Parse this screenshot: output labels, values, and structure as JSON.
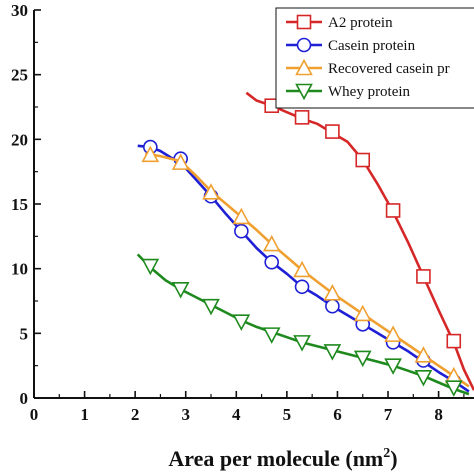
{
  "chart_data": {
    "type": "line",
    "xlabel": "Area per molecule (nm",
    "xlabel_sup": "2",
    "xlabel_close": ")",
    "ylabel": "",
    "xlim": [
      0,
      8.7
    ],
    "ylim": [
      0,
      30
    ],
    "xticks": [
      "0",
      "1",
      "2",
      "3",
      "4",
      "5",
      "6",
      "7",
      "8"
    ],
    "yticks": [
      "0",
      "5",
      "10",
      "15",
      "20",
      "25",
      "30"
    ],
    "legend_position": "top-right",
    "series": [
      {
        "name": "A2 protein",
        "color": "#d62728",
        "marker": "square",
        "x": [
          4.2,
          4.4,
          4.7,
          5.0,
          5.3,
          5.6,
          5.9,
          6.2,
          6.5,
          6.8,
          7.1,
          7.4,
          7.7,
          8.0,
          8.3,
          8.5,
          8.7
        ],
        "y": [
          23.6,
          23.0,
          22.6,
          22.1,
          21.6,
          21.2,
          20.5,
          19.8,
          18.4,
          16.5,
          14.4,
          12.0,
          9.4,
          6.8,
          4.3,
          2.2,
          0.6
        ],
        "marker_x": [
          4.7,
          5.3,
          5.9,
          6.5,
          7.1,
          7.7,
          8.3
        ],
        "marker_y": [
          22.6,
          21.7,
          20.6,
          18.4,
          14.5,
          9.4,
          4.4
        ]
      },
      {
        "name": "Casein protein",
        "color": "#1f1fd6",
        "marker": "circle",
        "x": [
          2.05,
          2.3,
          2.5,
          2.7,
          2.9,
          3.2,
          3.5,
          3.8,
          4.1,
          4.4,
          4.7,
          5.0,
          5.3,
          5.6,
          5.9,
          6.2,
          6.5,
          6.8,
          7.1,
          7.4,
          7.7,
          8.0,
          8.3,
          8.6
        ],
        "y": [
          19.5,
          19.4,
          19.1,
          18.6,
          18.2,
          16.9,
          15.6,
          14.2,
          12.9,
          11.6,
          10.5,
          9.6,
          8.6,
          7.9,
          7.1,
          6.4,
          5.7,
          5.0,
          4.3,
          3.6,
          2.8,
          2.0,
          1.3,
          0.5
        ],
        "marker_x": [
          2.3,
          2.9,
          3.5,
          4.1,
          4.7,
          5.3,
          5.9,
          6.5,
          7.1,
          7.7,
          8.3
        ],
        "marker_y": [
          19.4,
          18.5,
          15.6,
          12.9,
          10.5,
          8.6,
          7.1,
          5.7,
          4.3,
          2.9,
          1.3
        ]
      },
      {
        "name": "Recovered casein pr",
        "color": "#f0a030",
        "marker": "triangle-up",
        "x": [
          2.2,
          2.5,
          2.9,
          3.2,
          3.5,
          3.8,
          4.1,
          4.4,
          4.7,
          5.0,
          5.3,
          5.6,
          5.9,
          6.2,
          6.5,
          6.8,
          7.1,
          7.4,
          7.7,
          8.0,
          8.3,
          8.6
        ],
        "y": [
          18.9,
          18.7,
          18.3,
          17.2,
          16.0,
          15.0,
          14.0,
          13.0,
          11.9,
          10.9,
          9.9,
          9.0,
          8.1,
          7.3,
          6.5,
          5.7,
          4.9,
          4.1,
          3.3,
          2.5,
          1.7,
          0.9
        ],
        "marker_x": [
          2.3,
          2.9,
          3.5,
          4.1,
          4.7,
          5.3,
          5.9,
          6.5,
          7.1,
          7.7,
          8.3
        ],
        "marker_y": [
          18.8,
          18.2,
          15.9,
          14.0,
          11.9,
          9.9,
          8.1,
          6.5,
          4.9,
          3.3,
          1.7
        ]
      },
      {
        "name": "Whey protein",
        "color": "#1e8a1e",
        "marker": "triangle-down",
        "x": [
          2.05,
          2.3,
          2.6,
          2.9,
          3.2,
          3.5,
          3.8,
          4.1,
          4.4,
          4.7,
          5.0,
          5.3,
          5.6,
          5.9,
          6.2,
          6.5,
          6.8,
          7.1,
          7.4,
          7.7,
          8.0,
          8.3,
          8.6
        ],
        "y": [
          11.1,
          10.1,
          9.1,
          8.4,
          7.8,
          7.2,
          6.6,
          6.0,
          5.5,
          5.1,
          4.7,
          4.3,
          4.0,
          3.7,
          3.4,
          3.1,
          2.8,
          2.5,
          2.1,
          1.7,
          1.2,
          0.7,
          0.3
        ],
        "marker_x": [
          2.3,
          2.9,
          3.5,
          4.1,
          4.7,
          5.3,
          5.9,
          6.5,
          7.1,
          7.7,
          8.3
        ],
        "marker_y": [
          10.2,
          8.4,
          7.1,
          5.9,
          4.9,
          4.3,
          3.6,
          3.1,
          2.5,
          1.6,
          0.8
        ]
      }
    ]
  }
}
